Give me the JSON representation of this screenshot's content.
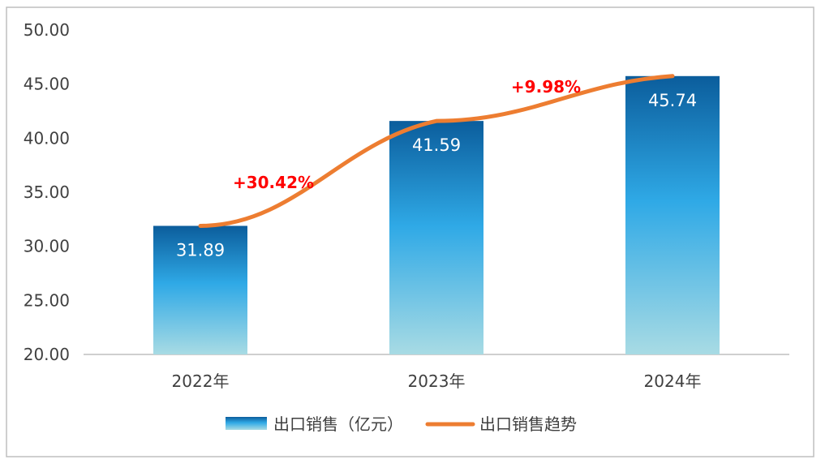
{
  "chart_data": {
    "type": "bar",
    "categories": [
      "2022年",
      "2023年",
      "2024年"
    ],
    "series": [
      {
        "name": "出口销售（亿元）",
        "type": "bar",
        "values": [
          31.89,
          41.59,
          45.74
        ],
        "data_labels": [
          "31.89",
          "41.59",
          "45.74"
        ]
      },
      {
        "name": "出口销售趋势",
        "type": "line",
        "values": [
          31.89,
          41.59,
          45.74
        ]
      }
    ],
    "y_ticks": [
      "20.00",
      "25.00",
      "30.00",
      "35.00",
      "40.00",
      "45.00",
      "50.00"
    ],
    "ylim": [
      20,
      50
    ],
    "annotations": [
      {
        "text": "+30.42%",
        "between": [
          "2022年",
          "2023年"
        ]
      },
      {
        "text": "+9.98%",
        "between": [
          "2023年",
          "2024年"
        ]
      }
    ],
    "title": "",
    "xlabel": "",
    "ylabel": "",
    "legend_position": "bottom",
    "grid": false
  },
  "colors": {
    "bar_top": "#0b5d9c",
    "bar_mid": "#2fa9e6",
    "bar_bottom": "#a8dbe4",
    "line": "#ed7d31",
    "annotation": "#ff0000",
    "axis": "#bfbfbf",
    "frame": "#bfbfbf"
  }
}
